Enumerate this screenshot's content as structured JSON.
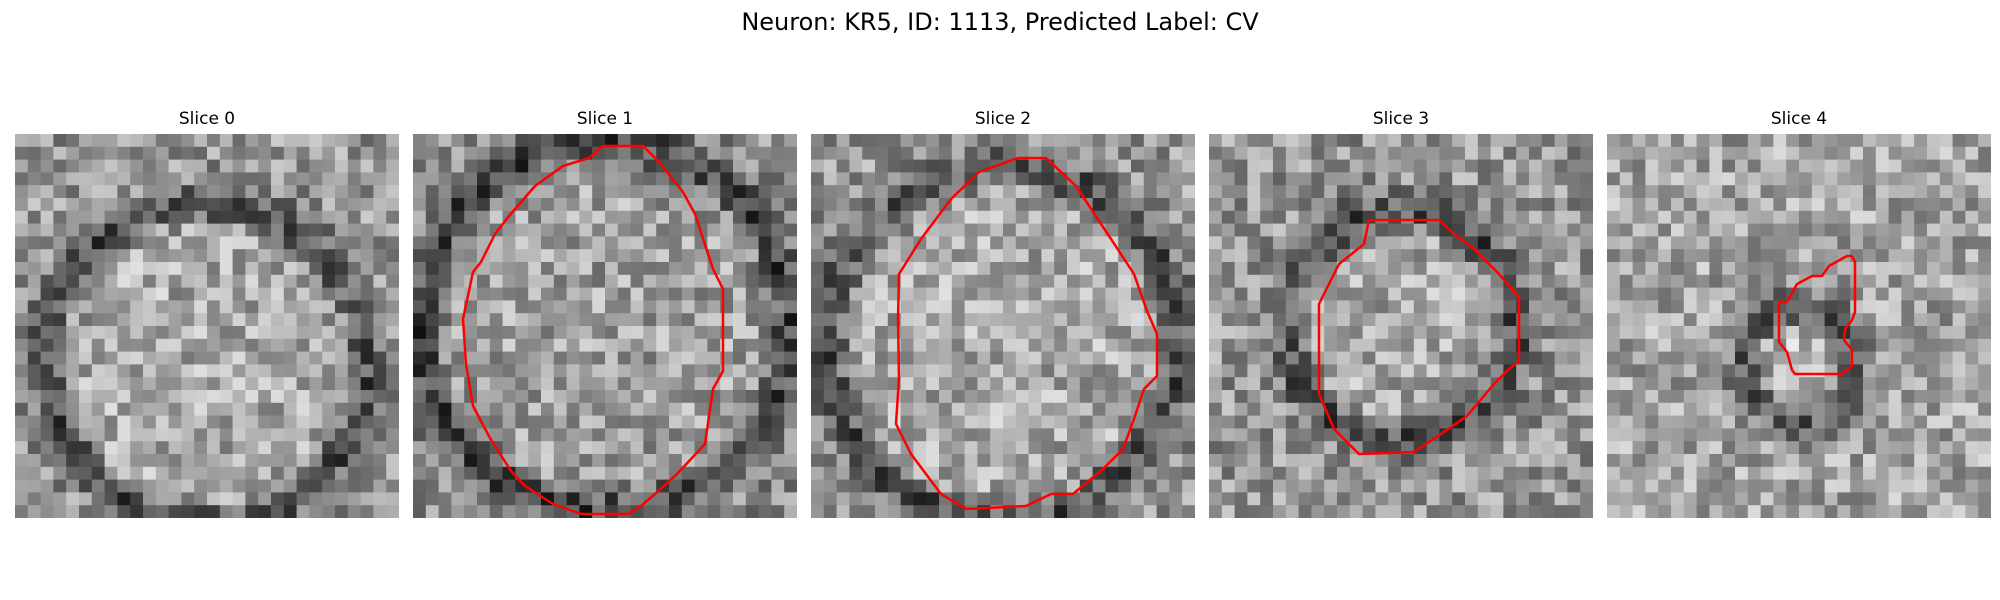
{
  "figure": {
    "title": "Neuron: KR5, ID: 1113, Predicted Label: CV"
  },
  "panels": [
    {
      "title": "Slice 0",
      "has_contour": false
    },
    {
      "title": "Slice 1",
      "has_contour": true
    },
    {
      "title": "Slice 2",
      "has_contour": true
    },
    {
      "title": "Slice 3",
      "has_contour": true
    },
    {
      "title": "Slice 4",
      "has_contour": true
    }
  ],
  "colors": {
    "contour": "#ff0000",
    "background": "#ffffff"
  },
  "image_grid": {
    "colormap": "grayscale",
    "cells_per_side": 30
  }
}
